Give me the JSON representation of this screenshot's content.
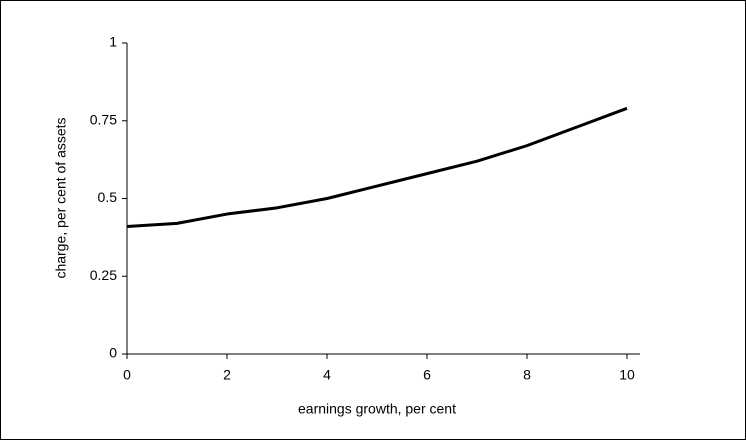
{
  "chart_data": {
    "type": "line",
    "x_label": "earnings growth, per cent",
    "y_label": "charge, per cent of assets",
    "x": [
      0,
      1,
      2,
      3,
      4,
      5,
      6,
      7,
      8,
      9,
      10
    ],
    "series": [
      {
        "color": "#000000",
        "values": [
          0.41,
          0.42,
          0.45,
          0.47,
          0.5,
          0.54,
          0.58,
          0.62,
          0.67,
          0.73,
          0.79
        ]
      }
    ],
    "xlim": [
      0,
      10
    ],
    "xticks": [
      0,
      2,
      4,
      6,
      8,
      10
    ],
    "ylim": [
      0,
      1
    ],
    "yticks": [
      0,
      0.25,
      0.5,
      0.75,
      1
    ],
    "grid": false
  }
}
